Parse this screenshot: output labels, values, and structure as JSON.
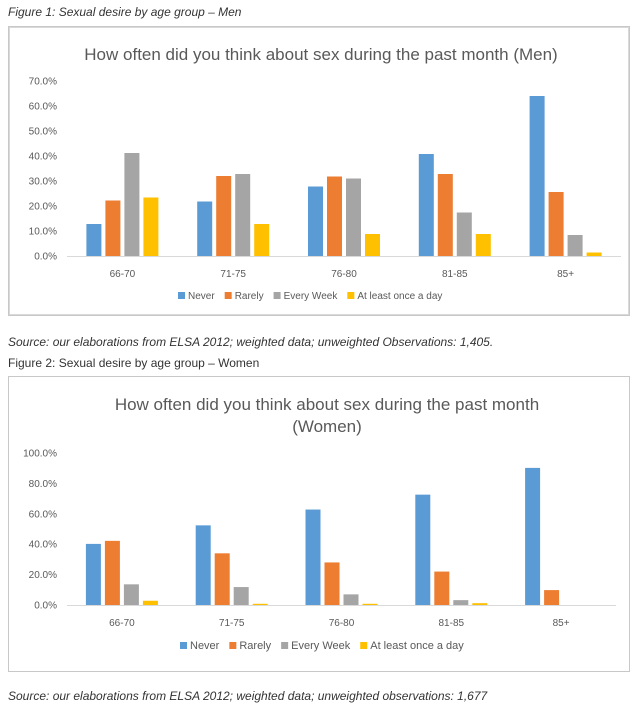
{
  "captions": {
    "fig1": "Figure 1: Sexual desire by age group – Men",
    "source1": "Source: our elaborations from ELSA 2012; weighted data; unweighted Observations: 1,405.",
    "fig2": "Figure 2: Sexual desire by age group – Women",
    "source2": "Source: our elaborations from ELSA 2012; weighted data; unweighted observations: 1,677"
  },
  "colors": {
    "never": "#5b9bd5",
    "rarely": "#ed7d31",
    "every_week": "#a5a5a5",
    "daily": "#ffc000"
  },
  "chart_data": [
    {
      "type": "bar",
      "title": "How often did you think about sex during the past month (Men)",
      "categories": [
        "66-70",
        "71-75",
        "76-80",
        "81-85",
        "85+"
      ],
      "series": [
        {
          "name": "Never",
          "values": [
            12.8,
            21.8,
            27.8,
            40.8,
            64.0
          ]
        },
        {
          "name": "Rarely",
          "values": [
            22.2,
            32.0,
            31.8,
            32.8,
            25.6
          ]
        },
        {
          "name": "Every Week",
          "values": [
            41.2,
            32.8,
            31.0,
            17.4,
            8.4
          ]
        },
        {
          "name": "At least once a day",
          "values": [
            23.4,
            12.8,
            8.8,
            8.8,
            1.4
          ]
        }
      ],
      "yticks": [
        "0.0%",
        "10.0%",
        "20.0%",
        "30.0%",
        "40.0%",
        "50.0%",
        "60.0%",
        "70.0%"
      ],
      "ylim": [
        0,
        70
      ],
      "legend_position": "bottom",
      "grid": false
    },
    {
      "type": "bar",
      "title_lines": [
        "How often did you think about sex during the past month",
        "(Women)"
      ],
      "categories": [
        "66-70",
        "71-75",
        "76-80",
        "81-85",
        "85+"
      ],
      "series": [
        {
          "name": "Never",
          "values": [
            40.2,
            52.4,
            62.8,
            72.6,
            90.2
          ]
        },
        {
          "name": "Rarely",
          "values": [
            42.2,
            34.0,
            28.0,
            22.0,
            9.8
          ]
        },
        {
          "name": "Every Week",
          "values": [
            13.6,
            11.8,
            7.0,
            3.2,
            0
          ]
        },
        {
          "name": "At least once a day",
          "values": [
            2.8,
            0.8,
            0.8,
            1.2,
            0
          ]
        }
      ],
      "yticks": [
        "0.0%",
        "20.0%",
        "40.0%",
        "60.0%",
        "80.0%",
        "100.0%"
      ],
      "ylim": [
        0,
        100
      ],
      "legend_position": "bottom",
      "grid": false
    }
  ]
}
